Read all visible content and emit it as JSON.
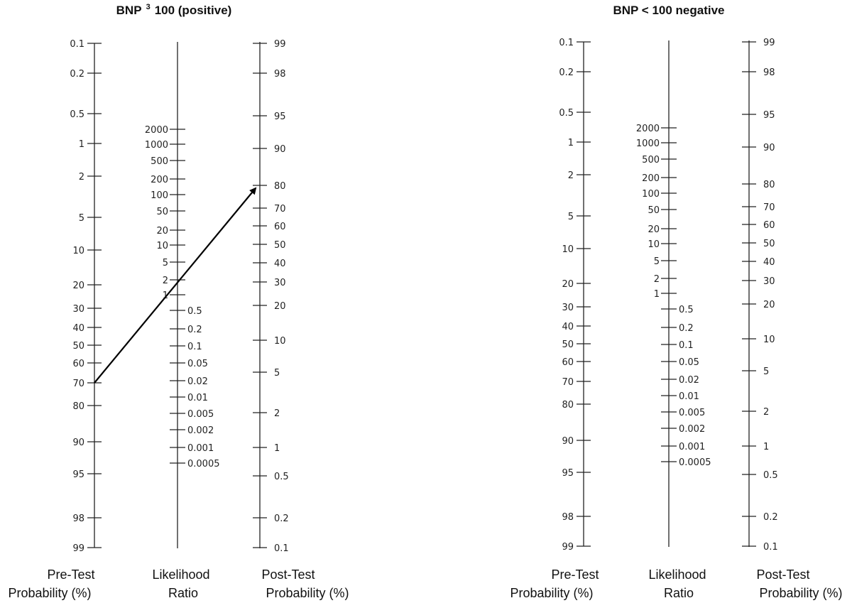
{
  "nomograms": [
    {
      "title_main": "BNP",
      "title_sup": "3",
      "title_rest": "100 (positive)",
      "axis_labels": {
        "pretest": [
          "Pre-Test",
          "Probability (%)"
        ],
        "lr": [
          "Likelihood",
          "Ratio"
        ],
        "posttest": [
          "Post-Test",
          "Probability (%)"
        ]
      },
      "arrow": {
        "pretest_pct": 70,
        "lr": 2,
        "posttest_pct": 80
      }
    },
    {
      "title_main": "BNP < 100 negative",
      "title_sup": "",
      "title_rest": "",
      "axis_labels": {
        "pretest": [
          "Pre-Test",
          "Probability (%)"
        ],
        "lr": [
          "Likelihood",
          "Ratio"
        ],
        "posttest": [
          "Post-Test",
          "Probability (%)"
        ]
      },
      "arrow": null
    }
  ],
  "pretest_ticks": [
    "0.1",
    "0.2",
    "0.5",
    "1",
    "2",
    "5",
    "10",
    "20",
    "30",
    "40",
    "50",
    "60",
    "70",
    "80",
    "90",
    "95",
    "98",
    "99"
  ],
  "lr_ticks_upper": [
    "2000",
    "1000",
    "500",
    "200",
    "100",
    "50",
    "20",
    "10",
    "5",
    "2",
    "1"
  ],
  "lr_ticks_lower": [
    "0.5",
    "0.2",
    "0.1",
    "0.05",
    "0.02",
    "0.01",
    "0.005",
    "0.002",
    "0.001",
    "0.0005"
  ],
  "posttest_ticks": [
    "99",
    "98",
    "95",
    "90",
    "80",
    "70",
    "60",
    "50",
    "40",
    "30",
    "20",
    "10",
    "5",
    "2",
    "1",
    "0.5",
    "0.2",
    "0.1"
  ]
}
